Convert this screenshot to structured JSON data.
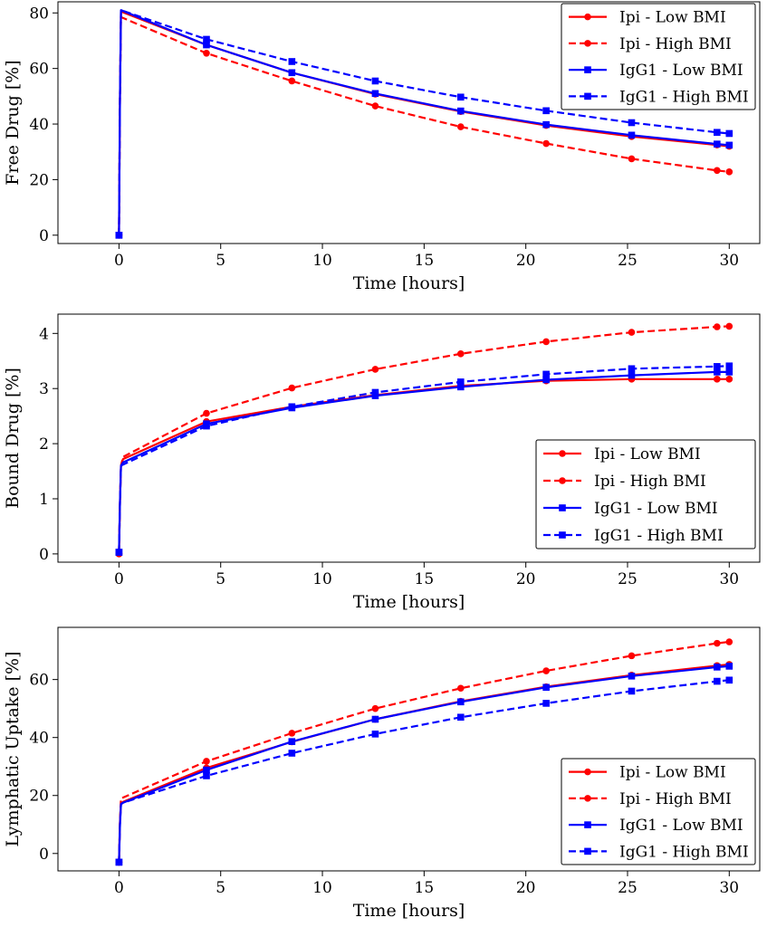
{
  "chart_data": [
    {
      "type": "line",
      "ylabel": "Free Drug [%]",
      "xlabel": "Time [hours]",
      "xlim": [
        -3,
        31.5
      ],
      "ylim": [
        -3,
        84
      ],
      "xticks": [
        0,
        5,
        10,
        15,
        20,
        25,
        30
      ],
      "yticks": [
        0,
        20,
        40,
        60,
        80
      ],
      "legend_position": "top-right",
      "grid": false,
      "series": [
        {
          "name": "Ipi - Low BMI",
          "color": "#ff0000",
          "linestyle": "solid",
          "marker": "circle",
          "x": [
            0,
            0.05,
            0.1,
            4.3,
            8.5,
            12.6,
            16.8,
            21,
            25.2,
            29.4,
            30
          ],
          "y": [
            0,
            50,
            80.5,
            68.5,
            58.5,
            50.8,
            44.5,
            39.5,
            35.5,
            32.5,
            32.0
          ]
        },
        {
          "name": "Ipi - High BMI",
          "color": "#ff0000",
          "linestyle": "dashed",
          "marker": "circle",
          "x": [
            0,
            0.05,
            0.1,
            4.3,
            8.5,
            12.6,
            16.8,
            21,
            25.2,
            29.4,
            30
          ],
          "y": [
            0,
            50,
            78.5,
            65.5,
            55.5,
            46.5,
            39.0,
            33.0,
            27.5,
            23.3,
            22.8
          ]
        },
        {
          "name": "IgG1 - Low BMI",
          "color": "#0000ff",
          "linestyle": "solid",
          "marker": "square",
          "x": [
            0,
            0.05,
            0.1,
            4.3,
            8.5,
            12.6,
            16.8,
            21,
            25.2,
            29.4,
            30
          ],
          "y": [
            0,
            50,
            81,
            68.5,
            58.5,
            51.0,
            44.7,
            39.8,
            36.0,
            32.8,
            32.4
          ]
        },
        {
          "name": "IgG1 - High BMI",
          "color": "#0000ff",
          "linestyle": "dashed",
          "marker": "square",
          "x": [
            0,
            0.05,
            0.1,
            4.3,
            8.5,
            12.6,
            16.8,
            21,
            25.2,
            29.4,
            30
          ],
          "y": [
            0,
            50,
            81,
            70.5,
            62.5,
            55.5,
            49.7,
            44.8,
            40.5,
            37.0,
            36.6
          ]
        }
      ]
    },
    {
      "type": "line",
      "ylabel": "Bound Drug [%]",
      "xlabel": "Time [hours]",
      "xlim": [
        -3,
        31.5
      ],
      "ylim": [
        -0.15,
        4.35
      ],
      "xticks": [
        0,
        5,
        10,
        15,
        20,
        25,
        30
      ],
      "yticks": [
        0,
        1,
        2,
        3,
        4
      ],
      "legend_position": "bottom-right",
      "grid": false,
      "series": [
        {
          "name": "Ipi - Low BMI",
          "color": "#ff0000",
          "linestyle": "solid",
          "marker": "circle",
          "x": [
            0,
            0.05,
            0.1,
            0.2,
            4.3,
            8.5,
            12.6,
            16.8,
            21,
            25.2,
            29.4,
            30
          ],
          "y": [
            0,
            0.95,
            1.6,
            1.72,
            2.4,
            2.67,
            2.88,
            3.05,
            3.14,
            3.17,
            3.17,
            3.17
          ]
        },
        {
          "name": "Ipi - High BMI",
          "color": "#ff0000",
          "linestyle": "dashed",
          "marker": "circle",
          "x": [
            0,
            0.05,
            0.1,
            0.2,
            4.3,
            8.5,
            12.6,
            16.8,
            21,
            25.2,
            29.4,
            30
          ],
          "y": [
            0,
            0.95,
            1.6,
            1.76,
            2.55,
            3.01,
            3.35,
            3.63,
            3.85,
            4.02,
            4.12,
            4.13
          ]
        },
        {
          "name": "IgG1 - Low BMI",
          "color": "#0000ff",
          "linestyle": "solid",
          "marker": "square",
          "x": [
            0,
            0.05,
            0.1,
            0.2,
            4.3,
            8.5,
            12.6,
            16.8,
            21,
            25.2,
            29.4,
            30
          ],
          "y": [
            0.03,
            0.94,
            1.6,
            1.66,
            2.36,
            2.65,
            2.87,
            3.03,
            3.16,
            3.24,
            3.3,
            3.3
          ]
        },
        {
          "name": "IgG1 - High BMI",
          "color": "#0000ff",
          "linestyle": "dashed",
          "marker": "square",
          "x": [
            0,
            0.05,
            0.1,
            0.2,
            4.3,
            8.5,
            12.6,
            16.8,
            21,
            25.2,
            29.4,
            30
          ],
          "y": [
            0.03,
            0.94,
            1.6,
            1.62,
            2.32,
            2.67,
            2.93,
            3.12,
            3.26,
            3.36,
            3.4,
            3.41
          ]
        }
      ]
    },
    {
      "type": "line",
      "ylabel": "Lymphatic Uptake [%]",
      "xlabel": "Time [hours]",
      "xlim": [
        -3,
        31.5
      ],
      "ylim": [
        -6,
        78
      ],
      "xticks": [
        0,
        5,
        10,
        15,
        20,
        25,
        30
      ],
      "yticks": [
        0,
        20,
        40,
        60
      ],
      "legend_position": "bottom-right",
      "grid": false,
      "series": [
        {
          "name": "Ipi - Low BMI",
          "color": "#ff0000",
          "linestyle": "solid",
          "marker": "circle",
          "x": [
            0,
            0.05,
            0.1,
            0.2,
            4.3,
            8.5,
            12.6,
            16.8,
            21,
            25.2,
            29.4,
            30
          ],
          "y": [
            -3,
            11,
            17,
            17.8,
            29.5,
            38.5,
            46.3,
            52.5,
            57.5,
            61.5,
            64.8,
            65.2
          ]
        },
        {
          "name": "Ipi - High BMI",
          "color": "#ff0000",
          "linestyle": "dashed",
          "marker": "circle",
          "x": [
            0,
            0.05,
            0.1,
            0.2,
            4.3,
            8.5,
            12.6,
            16.8,
            21,
            25.2,
            29.4,
            30
          ],
          "y": [
            -3,
            11.5,
            19,
            19.3,
            31.8,
            41.5,
            50.0,
            57.0,
            63.0,
            68.2,
            72.5,
            73.0
          ]
        },
        {
          "name": "IgG1 - Low BMI",
          "color": "#0000ff",
          "linestyle": "solid",
          "marker": "square",
          "x": [
            0,
            0.05,
            0.1,
            0.2,
            4.3,
            8.5,
            12.6,
            16.8,
            21,
            25.2,
            29.4,
            30
          ],
          "y": [
            -3,
            10,
            17,
            17.5,
            28.8,
            38.6,
            46.3,
            52.3,
            57.3,
            61.2,
            64.3,
            64.6
          ]
        },
        {
          "name": "IgG1 - High BMI",
          "color": "#0000ff",
          "linestyle": "dashed",
          "marker": "square",
          "x": [
            0,
            0.05,
            0.1,
            0.2,
            4.3,
            8.5,
            12.6,
            16.8,
            21,
            25.2,
            29.4,
            30
          ],
          "y": [
            -3,
            10,
            17,
            17.5,
            26.8,
            34.6,
            41.2,
            47.0,
            51.8,
            56.0,
            59.4,
            59.8
          ]
        }
      ]
    }
  ]
}
